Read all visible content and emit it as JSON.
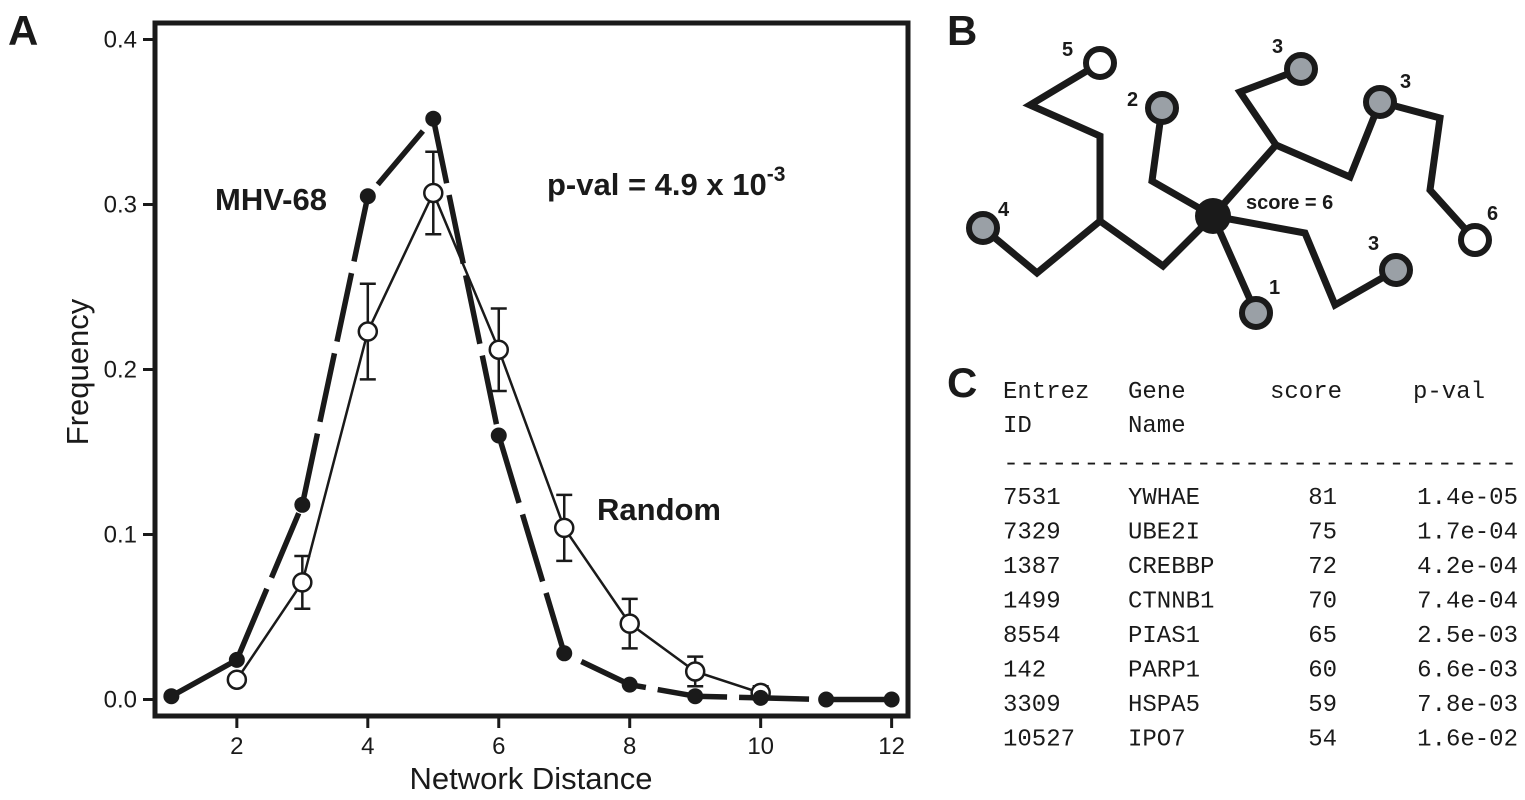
{
  "panels": {
    "a": "A",
    "b": "B",
    "c": "C"
  },
  "chart_data": {
    "type": "line",
    "xlabel": "Network Distance",
    "ylabel": "Frequency",
    "xlim": [
      0.75,
      12.25
    ],
    "ylim": [
      -0.01,
      0.41
    ],
    "xticks": [
      2,
      4,
      6,
      8,
      10,
      12
    ],
    "yticks": [
      0.0,
      0.1,
      0.2,
      0.3,
      0.4
    ],
    "yticklabels": [
      "0.0",
      "0.1",
      "0.2",
      "0.3",
      "0.4"
    ],
    "grid": false,
    "annotation": {
      "prefix": "p-val = 4.9 x 10",
      "exponent": "-3"
    },
    "series": [
      {
        "name": "MHV-68",
        "marker": "filled-circle",
        "x": [
          1,
          2,
          3,
          4,
          5,
          6,
          7,
          8,
          9,
          10,
          11,
          12
        ],
        "y": [
          0.002,
          0.024,
          0.118,
          0.305,
          0.352,
          0.16,
          0.028,
          0.009,
          0.002,
          0.001,
          0.0,
          0.0
        ]
      },
      {
        "name": "Random",
        "marker": "open-circle",
        "x": [
          2,
          3,
          4,
          5,
          6,
          7,
          8,
          9,
          10
        ],
        "y": [
          0.012,
          0.071,
          0.223,
          0.307,
          0.212,
          0.104,
          0.046,
          0.017,
          0.004
        ],
        "error": [
          0.003,
          0.016,
          0.029,
          0.025,
          0.025,
          0.02,
          0.015,
          0.009,
          0.004
        ]
      }
    ]
  },
  "network": {
    "center_label": "score = 6",
    "node_labels": [
      "5",
      "2",
      "3",
      "3",
      "4",
      "6",
      "3",
      "1"
    ]
  },
  "table": {
    "header_line1": [
      "Entrez",
      "Gene",
      "score",
      "p-val"
    ],
    "header_line2": [
      "ID",
      "Name"
    ],
    "separator": "--------------------------------",
    "rows": [
      [
        "7531",
        "YWHAE",
        "81",
        "1.4e-05"
      ],
      [
        "7329",
        "UBE2I",
        "75",
        "1.7e-04"
      ],
      [
        "1387",
        "CREBBP",
        "72",
        "4.2e-04"
      ],
      [
        "1499",
        "CTNNB1",
        "70",
        "7.4e-04"
      ],
      [
        "8554",
        "PIAS1",
        "65",
        "2.5e-03"
      ],
      [
        "142",
        "PARP1",
        "60",
        "6.6e-03"
      ],
      [
        "3309",
        "HSPA5",
        "59",
        "7.8e-03"
      ],
      [
        "10527",
        "IPO7",
        "54",
        "1.6e-02"
      ]
    ]
  }
}
